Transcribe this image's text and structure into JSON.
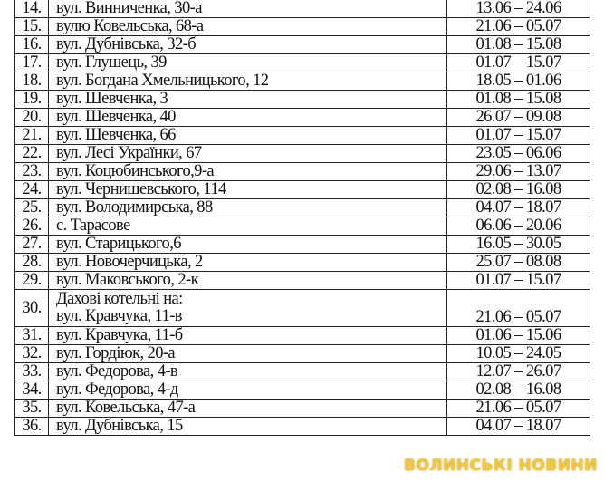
{
  "rows": [
    {
      "num": "14.",
      "address": "вул. Винниченка, 30-а",
      "dates": "13.06 – 24.06"
    },
    {
      "num": "15.",
      "address": "вулю Ковельська, 68-а",
      "dates": "21.06 – 05.07"
    },
    {
      "num": "16.",
      "address": "вул. Дубнівська, 32-б",
      "dates": "01.08 – 15.08"
    },
    {
      "num": "17.",
      "address": "вул. Глушець, 39",
      "dates": "01.07 – 15.07"
    },
    {
      "num": "18.",
      "address": "вул. Богдана Хмельницького, 12",
      "dates": "18.05 – 01.06"
    },
    {
      "num": "19.",
      "address": "вул. Шевченка, 3",
      "dates": "01.08 – 15.08"
    },
    {
      "num": "20.",
      "address": "вул. Шевченка, 40",
      "dates": "26.07 – 09.08"
    },
    {
      "num": "21.",
      "address": "вул. Шевченка, 66",
      "dates": "01.07 – 15.07"
    },
    {
      "num": "22.",
      "address": "вул. Лесі Українки, 67",
      "dates": "23.05 – 06.06"
    },
    {
      "num": "23.",
      "address": "вул. Коцюбинського,9-а",
      "dates": "29.06 – 13.07"
    },
    {
      "num": "24.",
      "address": "вул. Чернишевського, 114",
      "dates": "02.08 – 16.08"
    },
    {
      "num": "25.",
      "address": "вул. Володимирська, 88",
      "dates": "04.07 – 18.07"
    },
    {
      "num": "26.",
      "address": "с. Тарасове",
      "dates": "06.06 – 20.06"
    },
    {
      "num": "27.",
      "address": "вул. Старицького,6",
      "dates": "16.05 – 30.05"
    },
    {
      "num": "28.",
      "address": "вул. Новочерчицька, 2",
      "dates": "25.07 – 08.08"
    },
    {
      "num": "29.",
      "address": "вул. Маковського, 2-к",
      "dates": "01.07 – 15.07"
    },
    {
      "num": "30.",
      "heading": "Дахові котельні на:",
      "address": "вул. Кравчука, 11-в",
      "dates": "21.06 – 05.07"
    },
    {
      "num": "31.",
      "address": "вул. Кравчука, 11-б",
      "dates": "01.06 – 15.06"
    },
    {
      "num": "32.",
      "address": "вул. Гордіюк, 20-а",
      "dates": "10.05 – 24.05"
    },
    {
      "num": "33.",
      "address": "вул. Федорова, 4-в",
      "dates": "12.07 – 26.07"
    },
    {
      "num": "34.",
      "address": "вул. Федорова, 4-д",
      "dates": "02.08 – 16.08"
    },
    {
      "num": "35.",
      "address": "вул. Ковельська, 47-а",
      "dates": "21.06 – 05.07"
    },
    {
      "num": "36.",
      "address": "вул. Дубнівська, 15",
      "dates": "04.07 – 18.07"
    }
  ],
  "watermark": "ВОЛИНСЬКІ НОВИНИ"
}
